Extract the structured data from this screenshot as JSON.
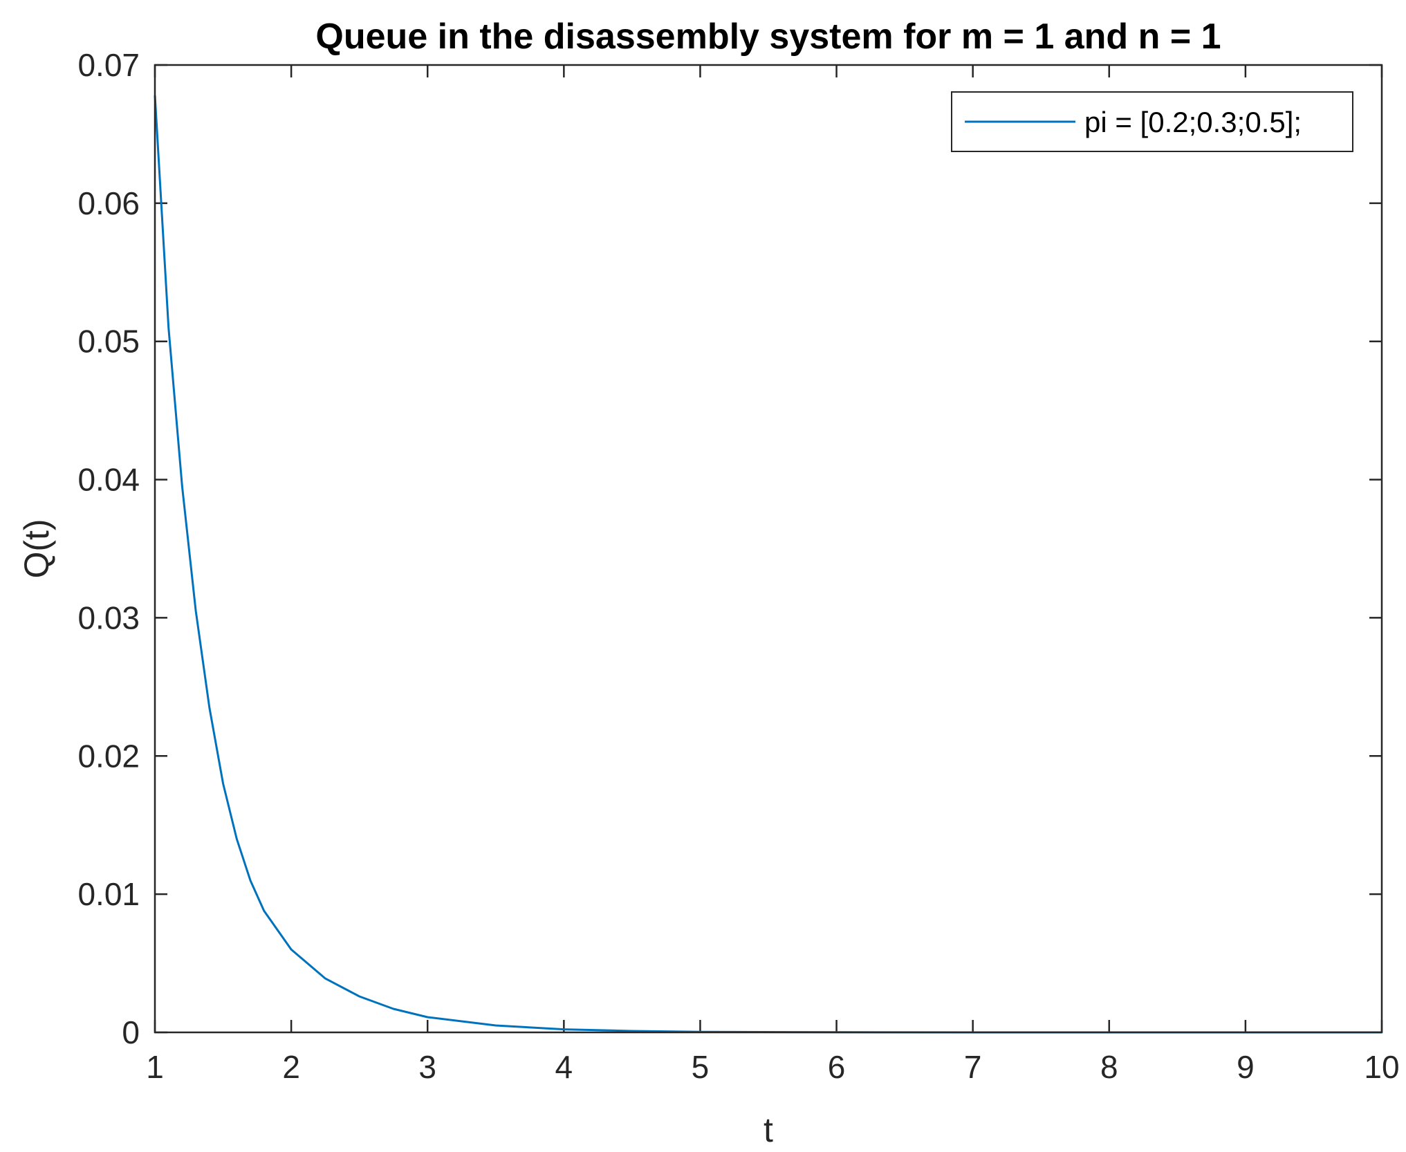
{
  "chart_data": {
    "type": "line",
    "title": "Queue in the disassembly system for m = 1 and n = 1",
    "xlabel": "t",
    "ylabel": "Q(t)",
    "xlim": [
      1,
      10
    ],
    "ylim": [
      0,
      0.07
    ],
    "xticks": [
      1,
      2,
      3,
      4,
      5,
      6,
      7,
      8,
      9,
      10
    ],
    "xtick_labels": [
      "1",
      "2",
      "3",
      "4",
      "5",
      "6",
      "7",
      "8",
      "9",
      "10"
    ],
    "yticks": [
      0,
      0.01,
      0.02,
      0.03,
      0.04,
      0.05,
      0.06,
      0.07
    ],
    "ytick_labels": [
      "0",
      "0.01",
      "0.02",
      "0.03",
      "0.04",
      "0.05",
      "0.06",
      "0.07"
    ],
    "grid": false,
    "legend_position": "top-right",
    "series": [
      {
        "name": "pi = [0.2;0.3;0.5];",
        "color": "#0072bd",
        "x": [
          1.0,
          1.1,
          1.2,
          1.3,
          1.4,
          1.5,
          1.6,
          1.7,
          1.8,
          2.0,
          2.25,
          2.5,
          2.75,
          3.0,
          3.5,
          4.0,
          4.5,
          5.0,
          6.0,
          7.0,
          8.0,
          9.0,
          10.0
        ],
        "values": [
          0.0678,
          0.051,
          0.0395,
          0.0305,
          0.0235,
          0.018,
          0.014,
          0.011,
          0.0088,
          0.006,
          0.0039,
          0.0026,
          0.0017,
          0.0011,
          0.0005,
          0.00022,
          0.0001,
          4e-05,
          1e-05,
          0.0,
          0.0,
          0.0,
          0.0
        ]
      }
    ]
  }
}
